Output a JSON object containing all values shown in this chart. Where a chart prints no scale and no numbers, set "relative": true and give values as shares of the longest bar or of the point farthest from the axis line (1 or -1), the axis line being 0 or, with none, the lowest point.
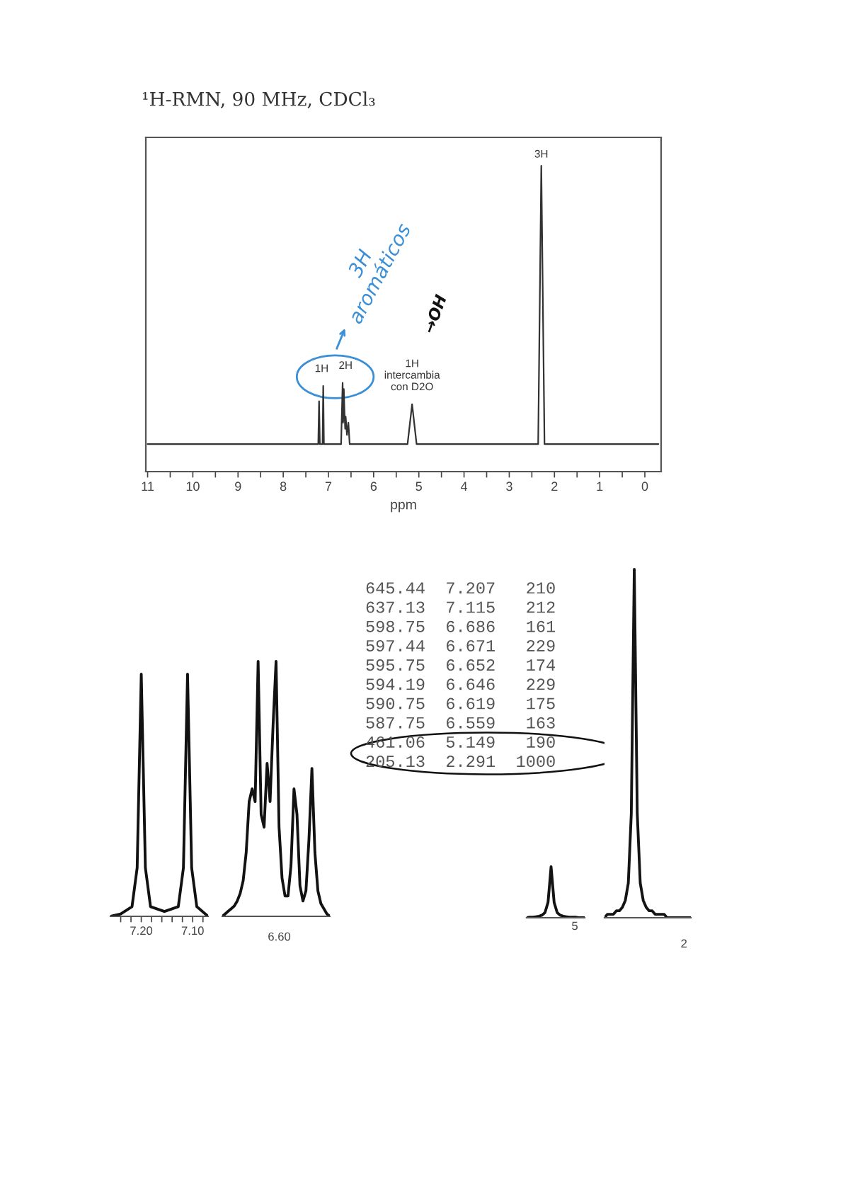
{
  "chart_data": [
    {
      "type": "line",
      "title": "¹H-RMN, 90 MHz, CDCl₃",
      "xlabel": "ppm",
      "relative": true,
      "grid": false,
      "x": [
        11.0,
        7.3,
        7.225,
        7.207,
        7.19,
        7.13,
        7.115,
        7.1,
        6.72,
        6.686,
        6.675,
        6.66,
        6.646,
        6.63,
        6.619,
        6.59,
        6.559,
        6.53,
        5.25,
        5.149,
        5.05,
        2.36,
        2.291,
        2.22,
        -0.3
      ],
      "series": [
        {
          "color": "#333333",
          "values": [
            0.09,
            0.09,
            0.09,
            0.23,
            0.09,
            0.09,
            0.28,
            0.09,
            0.09,
            0.29,
            0.16,
            0.27,
            0.2,
            0.14,
            0.18,
            0.12,
            0.16,
            0.09,
            0.09,
            0.22,
            0.09,
            0.09,
            1,
            0.09,
            0.09
          ]
        }
      ],
      "xlim": [
        11.04,
        -0.36
      ],
      "xticks": [
        11,
        {
          "value": 10.5,
          "label": null
        },
        10,
        {
          "value": 9.5,
          "label": null
        },
        9,
        {
          "value": 8.5,
          "label": null
        },
        8,
        {
          "value": 7.5,
          "label": null
        },
        7,
        {
          "value": 6.5,
          "label": null
        },
        6,
        {
          "value": 5.5,
          "label": null
        },
        5,
        {
          "value": 4.5,
          "label": null
        },
        4,
        {
          "value": 3.5,
          "label": null
        },
        3,
        {
          "value": 2.5,
          "label": null
        },
        2,
        {
          "value": 1.5,
          "label": null
        },
        1,
        {
          "value": 0.5,
          "label": null
        },
        0
      ],
      "annotations": [
        {
          "text": "3H",
          "x": 2.291,
          "y": 1.0
        },
        {
          "text": "1H",
          "x": 7.15,
          "y": 0.28
        },
        {
          "text": "2H",
          "x": 6.62,
          "y": 0.29
        },
        {
          "text": "1H\nintercambia\ncon D2O",
          "x": 5.149,
          "y": 0.22
        },
        "3H\naromáticos",
        "→OH"
      ]
    },
    {
      "type": "line",
      "relative": true,
      "x": [
        7.26,
        7.24,
        7.218,
        7.208,
        7.2,
        7.192,
        7.182,
        7.155,
        7.128,
        7.118,
        7.11,
        7.102,
        7.092,
        7.07
      ],
      "series": [
        {
          "color": "#111111",
          "values": [
            0,
            0.01,
            0.04,
            0.2,
            1,
            0.2,
            0.04,
            0.02,
            0.04,
            0.2,
            1,
            0.2,
            0.04,
            0
          ]
        }
      ],
      "xlim": [
        7.26,
        7.07
      ],
      "xticks": [
        {
          "value": 7.24,
          "label": null
        },
        {
          "value": 7.22,
          "label": null
        },
        {
          "value": 7.2,
          "label": "7.20"
        },
        {
          "value": 7.18,
          "label": null
        },
        {
          "value": 7.16,
          "label": null
        },
        {
          "value": 7.14,
          "label": null
        },
        {
          "value": 7.12,
          "label": null
        },
        {
          "value": 7.1,
          "label": "7.10"
        },
        {
          "value": 7.08,
          "label": null
        }
      ]
    },
    {
      "type": "line",
      "relative": true,
      "categories": [
        null,
        null,
        null,
        null,
        null,
        null,
        null,
        null,
        null,
        null,
        null,
        null,
        null,
        null,
        null,
        null,
        null,
        null,
        null,
        null,
        null,
        null,
        null,
        null,
        null,
        null,
        null,
        null,
        null,
        null,
        null,
        null,
        null,
        null,
        null,
        null,
        null
      ],
      "series": [
        {
          "color": "#121212",
          "values": [
            0,
            0.01,
            0.02,
            0.03,
            0.04,
            0.06,
            0.09,
            0.14,
            0.25,
            0.45,
            0.5,
            0.45,
            1,
            0.4,
            0.35,
            0.6,
            0.45,
            0.75,
            1,
            0.35,
            0.15,
            0.08,
            0.08,
            0.2,
            0.5,
            0.4,
            0.12,
            0.06,
            0.1,
            0.3,
            0.58,
            0.25,
            0.1,
            0.05,
            0.03,
            0.01,
            0
          ]
        }
      ],
      "annotations": [
        "6.60"
      ]
    },
    {
      "type": "other",
      "annotations": [
        "645.44  7.207   210",
        "637.13  7.115   212",
        "598.75  6.686   161",
        "597.44  6.671   229",
        "595.75  6.652   174",
        "594.19  6.646   229",
        "590.75  6.619   175",
        "587.75  6.559   163",
        "461.06  5.149   190",
        "205.13  2.291  1000"
      ]
    },
    {
      "type": "line",
      "relative": true,
      "categories": [
        null,
        null,
        null,
        null,
        null,
        null,
        null,
        null,
        null,
        null,
        null,
        null,
        null,
        null,
        null,
        null,
        null,
        null,
        null,
        null
      ],
      "series": [
        {
          "color": "#131313",
          "values": [
            0,
            0.01,
            0.01,
            0.02,
            0.03,
            0.05,
            0.1,
            0.3,
            1,
            0.3,
            0.1,
            0.05,
            0.03,
            0.02,
            0.01,
            0.01,
            0.01,
            0,
            0,
            0
          ]
        }
      ],
      "annotations": [
        "5"
      ]
    },
    {
      "type": "line",
      "relative": true,
      "categories": [
        null,
        null,
        null,
        null,
        null,
        null,
        null,
        null,
        null,
        null,
        null,
        null,
        null,
        null,
        null,
        null,
        null,
        null,
        null,
        null,
        null,
        null,
        null,
        null,
        null,
        null,
        null,
        null,
        null,
        null
      ],
      "series": [
        {
          "color": "#141414",
          "values": [
            0,
            0.01,
            0.01,
            0.01,
            0.02,
            0.02,
            0.03,
            0.05,
            0.1,
            0.3,
            1,
            0.3,
            0.1,
            0.05,
            0.03,
            0.02,
            0.02,
            0.01,
            0.01,
            0.01,
            0.01,
            0,
            0,
            0,
            0,
            0,
            0,
            0,
            0,
            0
          ]
        }
      ],
      "annotations": [
        "2"
      ]
    }
  ]
}
